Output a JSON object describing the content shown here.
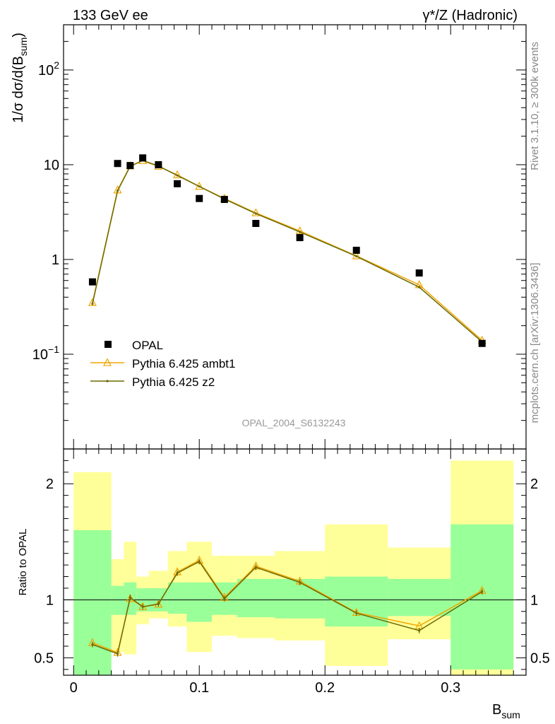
{
  "header": {
    "left": "133 GeV ee",
    "right": "γ*/Z (Hadronic)",
    "side_top": "Rivet 3.1.10, ≥ 300k events",
    "side_bottom": "mcplots.cern.ch [arXiv:1306.3436]",
    "watermark": "OPAL_2004_S6132243"
  },
  "colors": {
    "data": "#000000",
    "ambt1": "#f0a500",
    "z2": "#6b6b00",
    "band_inner": "#99ff99",
    "band_outer": "#ffff99"
  },
  "chart_data": [
    {
      "type": "scatter",
      "ylabel": "1/σ dσ/d(Bsum)",
      "yscale": "log",
      "xlim": [
        -0.008,
        0.36
      ],
      "ylim": [
        0.01,
        300
      ],
      "y_ticks": [
        "10⁻¹",
        "1",
        "10",
        "10²"
      ],
      "legend": {
        "position": "bottom-left",
        "entries": [
          "OPAL",
          "Pythia 6.425 ambt1",
          "Pythia 6.425 z2"
        ]
      },
      "series": [
        {
          "name": "OPAL",
          "x": [
            0.015,
            0.035,
            0.045,
            0.055,
            0.0675,
            0.0825,
            0.1,
            0.12,
            0.145,
            0.18,
            0.225,
            0.275,
            0.325
          ],
          "y": [
            0.58,
            10.3,
            9.8,
            11.8,
            10.0,
            6.3,
            4.4,
            4.3,
            2.4,
            1.7,
            1.25,
            0.72,
            0.13
          ]
        },
        {
          "name": "Pythia 6.425 ambt1",
          "x": [
            0.015,
            0.035,
            0.045,
            0.055,
            0.0675,
            0.0825,
            0.1,
            0.12,
            0.145,
            0.18,
            0.225,
            0.275,
            0.325
          ],
          "y": [
            0.35,
            5.4,
            9.7,
            11.0,
            9.6,
            7.8,
            5.9,
            4.4,
            3.1,
            2.0,
            1.09,
            0.54,
            0.14
          ]
        },
        {
          "name": "Pythia 6.425 z2",
          "x": [
            0.015,
            0.035,
            0.045,
            0.055,
            0.0675,
            0.0825,
            0.1,
            0.12,
            0.145,
            0.18,
            0.225,
            0.275,
            0.325
          ],
          "y": [
            0.34,
            5.3,
            9.6,
            11.1,
            9.7,
            7.7,
            5.9,
            4.35,
            3.05,
            1.95,
            1.08,
            0.51,
            0.135
          ]
        }
      ]
    },
    {
      "type": "line",
      "xlabel": "Bsum",
      "ylabel": "Ratio to OPAL",
      "xlim": [
        -0.008,
        0.36
      ],
      "ylim": [
        0.35,
        2.3
      ],
      "x_ticks": [
        "0",
        "0.1",
        "0.2",
        "0.3"
      ],
      "y_ticks": [
        "0.5",
        "1",
        "2"
      ],
      "bands": {
        "edges": [
          0,
          0.03,
          0.04,
          0.05,
          0.06,
          0.075,
          0.09,
          0.11,
          0.13,
          0.16,
          0.2,
          0.25,
          0.3,
          0.35
        ],
        "inner_lo": [
          0.35,
          0.87,
          0.87,
          0.9,
          0.9,
          0.88,
          0.81,
          0.87,
          0.85,
          0.84,
          0.77,
          0.86,
          0.4
        ],
        "inner_hi": [
          1.6,
          1.12,
          1.15,
          1.1,
          1.1,
          1.15,
          1.15,
          1.15,
          1.18,
          1.18,
          1.2,
          1.18,
          1.65
        ],
        "outer_lo": [
          0.35,
          0.55,
          0.53,
          0.79,
          0.84,
          0.77,
          0.55,
          0.69,
          0.67,
          0.65,
          0.43,
          0.66,
          0.35
        ],
        "outer_hi": [
          2.1,
          1.35,
          1.5,
          1.2,
          1.25,
          1.42,
          1.5,
          1.38,
          1.38,
          1.42,
          1.65,
          1.45,
          2.2
        ]
      },
      "series": [
        {
          "name": "Pythia 6.425 ambt1",
          "x": [
            0.015,
            0.035,
            0.045,
            0.055,
            0.0675,
            0.0825,
            0.1,
            0.12,
            0.145,
            0.18,
            0.225,
            0.275,
            0.325
          ],
          "y": [
            0.63,
            0.545,
            1.01,
            0.94,
            0.96,
            1.24,
            1.34,
            1.02,
            1.29,
            1.16,
            0.89,
            0.775,
            1.08
          ]
        },
        {
          "name": "Pythia 6.425 z2",
          "x": [
            0.015,
            0.035,
            0.045,
            0.055,
            0.0675,
            0.0825,
            0.1,
            0.12,
            0.145,
            0.18,
            0.225,
            0.275,
            0.325
          ],
          "y": [
            0.615,
            0.535,
            1.02,
            0.94,
            0.965,
            1.23,
            1.33,
            1.01,
            1.28,
            1.15,
            0.885,
            0.735,
            1.07
          ]
        }
      ]
    }
  ]
}
